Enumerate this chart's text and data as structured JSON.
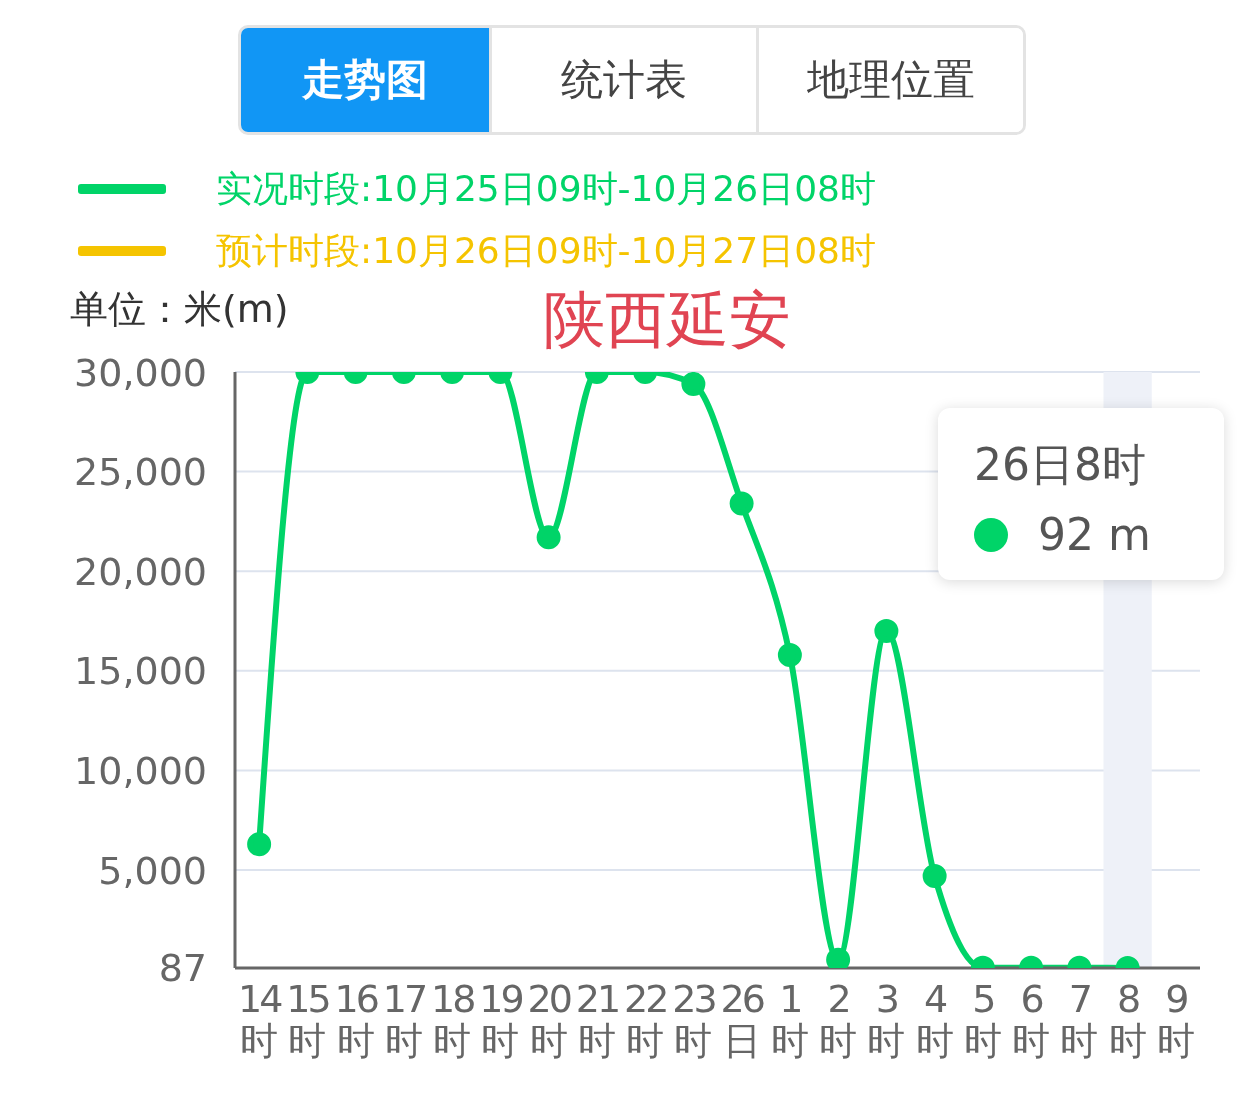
{
  "chart_data": {
    "type": "line",
    "title": "陕西延安",
    "ylabel": "单位：米(m)",
    "categories": [
      "14时",
      "15时",
      "16时",
      "17时",
      "18时",
      "19时",
      "20时",
      "21时",
      "22时",
      "23时",
      "26日",
      "1时",
      "2时",
      "3时",
      "4时",
      "5时",
      "6时",
      "7时",
      "8时",
      "9时"
    ],
    "series": [
      {
        "name": "实况时段:10月25日09时-10月26日08时",
        "color": "#00d468",
        "values": [
          6300,
          30000,
          30000,
          30000,
          30000,
          30000,
          21700,
          30000,
          30000,
          29400,
          23400,
          15800,
          500,
          17000,
          4700,
          100,
          100,
          100,
          92,
          null
        ]
      },
      {
        "name": "预计时段:10月26日09时-10月27日08时",
        "color": "#f5c400",
        "values": [
          null,
          null,
          null,
          null,
          null,
          null,
          null,
          null,
          null,
          null,
          null,
          null,
          null,
          null,
          null,
          null,
          null,
          null,
          null,
          null
        ]
      }
    ],
    "ylim": [
      87,
      30000
    ],
    "yticks": [
      87,
      {
        "value": 5000,
        "label": "5,000"
      },
      {
        "value": 10000,
        "label": "10,000"
      },
      {
        "value": 15000,
        "label": "15,000"
      },
      {
        "value": 20000,
        "label": "20,000"
      },
      {
        "value": 25000,
        "label": "25,000"
      },
      {
        "value": 30000,
        "label": "30,000"
      }
    ],
    "bands": [
      {
        "axis": "x",
        "from": "8时",
        "to": "8时",
        "color": "#eef1f8"
      }
    ],
    "annotations": [
      "走势图",
      "统计表",
      "地理位置",
      "26日8时",
      "92 m"
    ],
    "grid": "y",
    "legend": "top left",
    "marker": "circle",
    "line_style": "solid"
  }
}
